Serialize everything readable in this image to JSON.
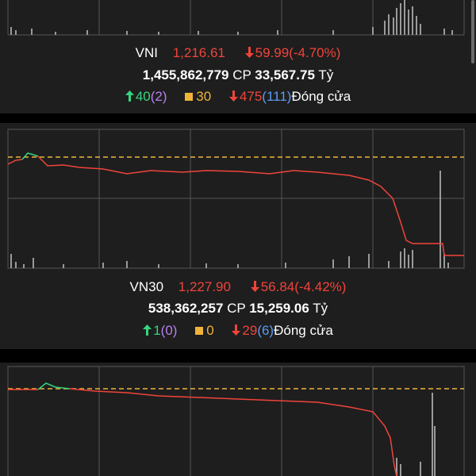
{
  "panels": [
    {
      "index": "VNI",
      "price": "1,216.61",
      "change": "59.99(-4.70%)",
      "volume": "1,455,862,779",
      "volume_unit": "CP",
      "value": "33,567.75",
      "value_unit": "Tỷ",
      "advances": "40",
      "ceiling": "(2)",
      "unchanged": "30",
      "declines": "475",
      "floor": "(111)",
      "status": "Đóng cửa"
    },
    {
      "index": "VN30",
      "price": "1,227.90",
      "change": "56.84(-4.42%)",
      "volume": "538,362,257",
      "volume_unit": "CP",
      "value": "15,259.06",
      "value_unit": "Tỷ",
      "advances": "1",
      "ceiling": "(0)",
      "unchanged": "0",
      "declines": "29",
      "floor": "(6)",
      "status": "Đóng cửa"
    }
  ]
}
